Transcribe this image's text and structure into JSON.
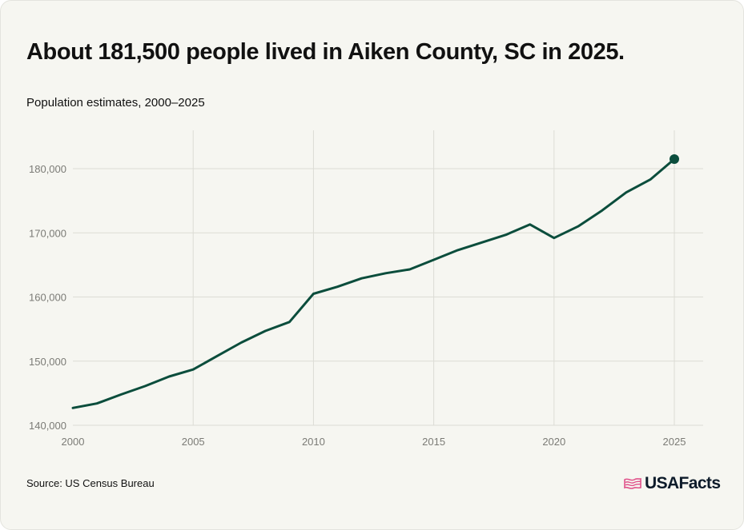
{
  "title": "About 181,500 people lived in Aiken County, SC in 2025.",
  "subtitle": "Population estimates, 2000–2025",
  "source": "Source: US Census Bureau",
  "logo": {
    "text": "USAFacts",
    "icon": "usa-flag-icon",
    "icon_color": "#e0518a",
    "text_color": "#0d1b2a"
  },
  "colors": {
    "line": "#0b4d3c",
    "grid": "#dcdcd5",
    "tick": "#7b7b76",
    "background": "#f6f6f1"
  },
  "chart_data": {
    "type": "line",
    "title": "About 181,500 people lived in Aiken County, SC in 2025.",
    "subtitle": "Population estimates, 2000–2025",
    "xlabel": "",
    "ylabel": "",
    "xlim": [
      2000,
      2025
    ],
    "ylim": [
      140000,
      180000
    ],
    "x_ticks": [
      2000,
      2005,
      2010,
      2015,
      2020,
      2025
    ],
    "y_ticks": [
      140000,
      150000,
      160000,
      170000,
      180000
    ],
    "x_tick_labels": [
      "2000",
      "2005",
      "2010",
      "2015",
      "2020",
      "2025"
    ],
    "y_tick_labels": [
      "140,000",
      "150,000",
      "160,000",
      "170,000",
      "180,000"
    ],
    "grid": true,
    "legend": "none",
    "series": [
      {
        "x": [
          2000,
          2001,
          2002,
          2003,
          2004,
          2005,
          2006,
          2007,
          2008,
          2009,
          2010,
          2011,
          2012,
          2013,
          2014,
          2015,
          2016,
          2017,
          2018,
          2019,
          2020,
          2021,
          2022,
          2023,
          2024,
          2025
        ],
        "values": [
          142700,
          143400,
          144800,
          146100,
          147600,
          148700,
          150800,
          152900,
          154700,
          156100,
          160500,
          161600,
          162900,
          163700,
          164300,
          165800,
          167300,
          168500,
          169700,
          171300,
          169200,
          171000,
          173500,
          176300,
          178300,
          181500
        ],
        "color": "#0b4d3c",
        "end_marker": true
      }
    ]
  }
}
